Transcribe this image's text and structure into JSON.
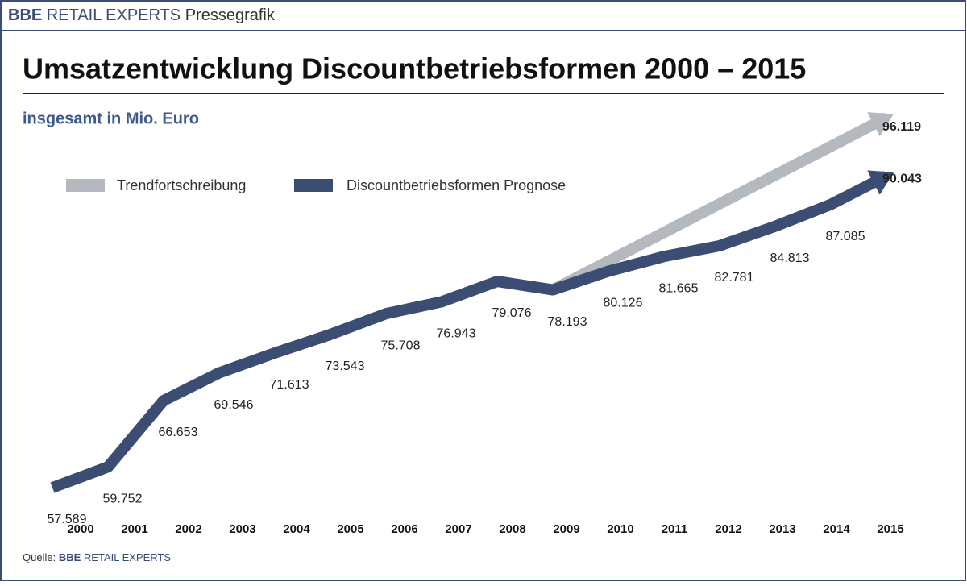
{
  "chart_data": {
    "type": "line",
    "header": [
      "BBE",
      "RETAIL EXPERTS",
      "Pressegrafik"
    ],
    "title": "Umsatzentwicklung Discountbetriebsformen 2000 – 2015",
    "subtitle": "insgesamt in Mio. Euro",
    "categories": [
      "2000",
      "2001",
      "2002",
      "2003",
      "2004",
      "2005",
      "2006",
      "2007",
      "2008",
      "2009",
      "2010",
      "2011",
      "2012",
      "2013",
      "2014",
      "2015"
    ],
    "series": [
      {
        "name": "Trendfortschreibung",
        "color": "#b4b9bf",
        "values": [
          null,
          null,
          null,
          null,
          null,
          null,
          null,
          null,
          null,
          78193,
          null,
          null,
          null,
          null,
          null,
          96119
        ],
        "value_labels": [
          null,
          null,
          null,
          null,
          null,
          null,
          null,
          null,
          null,
          null,
          null,
          null,
          null,
          null,
          null,
          "96.119"
        ]
      },
      {
        "name": "Discountbetriebsformen Prognose",
        "color": "#3b4d72",
        "values": [
          57589,
          59752,
          66653,
          69546,
          71613,
          73543,
          75708,
          76943,
          79076,
          78193,
          80126,
          81665,
          82781,
          84813,
          87085,
          90043
        ],
        "value_labels": [
          "57.589",
          "59.752",
          "66.653",
          "69.546",
          "71.613",
          "73.543",
          "75.708",
          "76.943",
          "79.076",
          "78.193",
          "80.126",
          "81.665",
          "82.781",
          "84.813",
          "87.085",
          "90.043"
        ]
      }
    ],
    "source": [
      "Quelle:",
      "BBE",
      "RETAIL EXPERTS"
    ]
  }
}
